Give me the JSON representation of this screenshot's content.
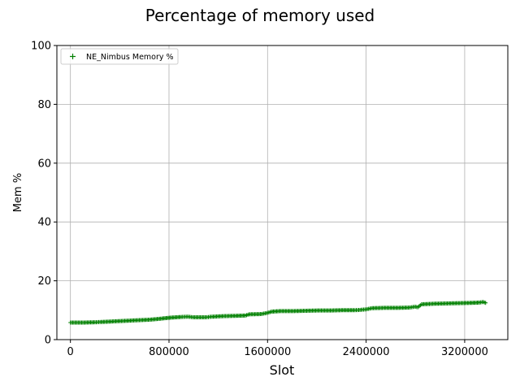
{
  "chart_data": {
    "type": "scatter",
    "title": "Percentage of memory used",
    "xlabel": "Slot",
    "ylabel": "Mem %",
    "xlim": [
      -110000,
      3550000
    ],
    "ylim": [
      0,
      100
    ],
    "xticks": [
      0,
      800000,
      1600000,
      2400000,
      3200000
    ],
    "xtick_labels": [
      "0",
      "800000",
      "1600000",
      "2400000",
      "3200000"
    ],
    "yticks": [
      0,
      20,
      40,
      60,
      80,
      100
    ],
    "ytick_labels": [
      "0",
      "20",
      "40",
      "60",
      "80",
      "100"
    ],
    "grid": true,
    "legend": {
      "placement": "top-left",
      "entries": [
        "NE_Nimbus Memory %"
      ]
    },
    "series": [
      {
        "name": "NE_Nimbus Memory %",
        "color": "#008000",
        "marker": "plus",
        "points": [
          [
            0,
            5.8
          ],
          [
            100000,
            5.8
          ],
          [
            200000,
            5.9
          ],
          [
            250000,
            6.0
          ],
          [
            350000,
            6.2
          ],
          [
            450000,
            6.4
          ],
          [
            550000,
            6.6
          ],
          [
            650000,
            6.8
          ],
          [
            750000,
            7.2
          ],
          [
            820000,
            7.5
          ],
          [
            900000,
            7.7
          ],
          [
            950000,
            7.8
          ],
          [
            1000000,
            7.6
          ],
          [
            1100000,
            7.6
          ],
          [
            1150000,
            7.8
          ],
          [
            1250000,
            8.0
          ],
          [
            1350000,
            8.1
          ],
          [
            1420000,
            8.2
          ],
          [
            1450000,
            8.6
          ],
          [
            1550000,
            8.7
          ],
          [
            1600000,
            9.1
          ],
          [
            1630000,
            9.5
          ],
          [
            1700000,
            9.7
          ],
          [
            1800000,
            9.7
          ],
          [
            1900000,
            9.8
          ],
          [
            2000000,
            9.9
          ],
          [
            2100000,
            9.9
          ],
          [
            2200000,
            10.0
          ],
          [
            2300000,
            10.0
          ],
          [
            2350000,
            10.1
          ],
          [
            2400000,
            10.3
          ],
          [
            2450000,
            10.7
          ],
          [
            2550000,
            10.8
          ],
          [
            2650000,
            10.8
          ],
          [
            2750000,
            10.9
          ],
          [
            2800000,
            11.2
          ],
          [
            2820000,
            11.0
          ],
          [
            2850000,
            12.0
          ],
          [
            2950000,
            12.2
          ],
          [
            3050000,
            12.3
          ],
          [
            3150000,
            12.4
          ],
          [
            3250000,
            12.5
          ],
          [
            3320000,
            12.6
          ],
          [
            3350000,
            12.8
          ],
          [
            3370000,
            12.5
          ]
        ]
      }
    ]
  }
}
